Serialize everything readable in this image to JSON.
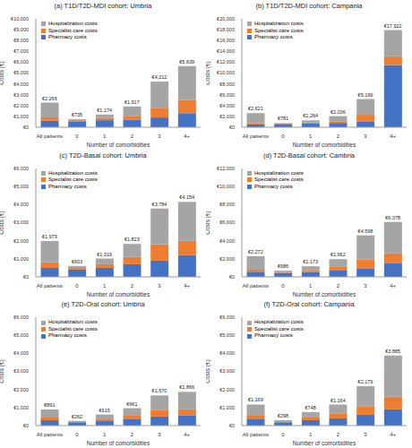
{
  "chart_data": [
    {
      "type": "bar",
      "stacked": true,
      "grid": false,
      "legend": "upper left",
      "title": "(a) T1D/T2D-MDI cohort: Umbria",
      "x_label": "Number of comorbidities",
      "y_label": "Costs (€)",
      "categories": [
        "All patients",
        "0",
        "1",
        "2",
        "3",
        "4+"
      ],
      "series": [
        {
          "name": "Pharmacy costs",
          "color": "#4472c4",
          "values": [
            600,
            550,
            650,
            700,
            900,
            1300
          ]
        },
        {
          "name": "Specialist care costs",
          "color": "#ed7d31",
          "values": [
            300,
            100,
            200,
            300,
            900,
            1200
          ]
        },
        {
          "name": "Hospitalization costs",
          "color": "#a5a5a5",
          "values": [
            1366,
            85,
            324,
            917,
            2412,
            3139
          ]
        }
      ],
      "totals": [
        2266,
        735,
        1174,
        1917,
        4212,
        5639
      ],
      "total_labels": [
        "€2,266",
        "€735",
        "€1,174",
        "€1,917",
        "€4,212",
        "€5,639"
      ],
      "ylim": [
        0,
        10000
      ],
      "yticks": [
        {
          "value": 0,
          "label": "€0"
        },
        {
          "value": 1000,
          "label": "€1,000"
        },
        {
          "value": 2000,
          "label": "€2,000"
        },
        {
          "value": 3000,
          "label": "€3,000"
        },
        {
          "value": 4000,
          "label": "€4,000"
        },
        {
          "value": 5000,
          "label": "€5,000"
        },
        {
          "value": 6000,
          "label": "€6,000"
        },
        {
          "value": 7000,
          "label": "€7,000"
        },
        {
          "value": 8000,
          "label": "€8,000"
        },
        {
          "value": 9000,
          "label": "€9,000"
        },
        {
          "value": 10000,
          "label": "€10,000"
        }
      ]
    },
    {
      "type": "bar",
      "stacked": true,
      "grid": false,
      "legend": "upper left",
      "title": "(b) T1D/T2D-MDI cohort: Campania",
      "x_label": "Number of comorbidities",
      "y_label": "Costs (€)",
      "categories": [
        "All patients",
        "0",
        "1",
        "2",
        "3",
        "4+"
      ],
      "series": [
        {
          "name": "Pharmacy costs",
          "color": "#4472c4",
          "values": [
            500,
            600,
            700,
            800,
            1100,
            11500
          ]
        },
        {
          "name": "Specialist care costs",
          "color": "#ed7d31",
          "values": [
            200,
            100,
            150,
            300,
            1200,
            1600
          ]
        },
        {
          "name": "Hospitalization costs",
          "color": "#a5a5a5",
          "values": [
            1921,
            81,
            414,
            936,
            2899,
            4822
          ]
        }
      ],
      "totals": [
        2621,
        781,
        1264,
        2036,
        5199,
        17922
      ],
      "total_labels": [
        "€2,621",
        "€781",
        "€1,264",
        "€2,036",
        "€5,199",
        "€17,922"
      ],
      "ylim": [
        0,
        20000
      ],
      "yticks": [
        {
          "value": 0,
          "label": "€0"
        },
        {
          "value": 2000,
          "label": "€2,000"
        },
        {
          "value": 4000,
          "label": "€4,000"
        },
        {
          "value": 6000,
          "label": "€6,000"
        },
        {
          "value": 8000,
          "label": "€8,000"
        },
        {
          "value": 10000,
          "label": "€10,000"
        },
        {
          "value": 12000,
          "label": "€12,000"
        },
        {
          "value": 14000,
          "label": "€14,000"
        },
        {
          "value": 16000,
          "label": "€16,000"
        },
        {
          "value": 18000,
          "label": "€18,000"
        },
        {
          "value": 20000,
          "label": "€20,000"
        }
      ]
    },
    {
      "type": "bar",
      "stacked": true,
      "grid": false,
      "legend": "upper left",
      "title": "(c) T2D-Basal cohort: Umbria",
      "x_label": "Number of comorbidities",
      "y_label": "Costs (€)",
      "categories": [
        "All patients",
        "0",
        "1",
        "2",
        "3",
        "4+"
      ],
      "series": [
        {
          "name": "Pharmacy costs",
          "color": "#4472c4",
          "values": [
            500,
            400,
            500,
            700,
            900,
            1200
          ]
        },
        {
          "name": "Specialist care costs",
          "color": "#ed7d31",
          "values": [
            300,
            100,
            200,
            400,
            900,
            800
          ]
        },
        {
          "name": "Hospitalization costs",
          "color": "#a5a5a5",
          "values": [
            1179,
            103,
            316,
            723,
            1984,
            2154
          ]
        }
      ],
      "totals": [
        1979,
        603,
        1016,
        1823,
        3784,
        4154
      ],
      "total_labels": [
        "€1,979",
        "€603",
        "€1,016",
        "€1,823",
        "€3,784",
        "€4,154"
      ],
      "ylim": [
        0,
        6000
      ],
      "yticks": [
        {
          "value": 0,
          "label": "€0"
        },
        {
          "value": 1000,
          "label": "€1,000"
        },
        {
          "value": 2000,
          "label": "€2,000"
        },
        {
          "value": 3000,
          "label": "€3,000"
        },
        {
          "value": 4000,
          "label": "€4,000"
        },
        {
          "value": 5000,
          "label": "€5,000"
        },
        {
          "value": 6000,
          "label": "€6,000"
        }
      ]
    },
    {
      "type": "bar",
      "stacked": true,
      "grid": false,
      "legend": "upper left",
      "title": "(d) T2D-Basal cohort: Cambria",
      "x_label": "Number of comorbidities",
      "y_label": "Costs (€)",
      "categories": [
        "All patients",
        "0",
        "1",
        "2",
        "3",
        "4+"
      ],
      "series": [
        {
          "name": "Pharmacy costs",
          "color": "#4472c4",
          "values": [
            500,
            450,
            550,
            700,
            900,
            1500
          ]
        },
        {
          "name": "Specialist care costs",
          "color": "#ed7d31",
          "values": [
            300,
            100,
            200,
            400,
            1000,
            1100
          ]
        },
        {
          "name": "Hospitalization costs",
          "color": "#a5a5a5",
          "values": [
            1472,
            136,
            423,
            862,
            2698,
            3478
          ]
        }
      ],
      "totals": [
        2272,
        686,
        1173,
        1962,
        4598,
        6078
      ],
      "total_labels": [
        "€2,272",
        "€686",
        "€1,173",
        "€1,962",
        "€4,598",
        "€6,078"
      ],
      "ylim": [
        0,
        12000
      ],
      "yticks": [
        {
          "value": 0,
          "label": "€0"
        },
        {
          "value": 2000,
          "label": "€2,000"
        },
        {
          "value": 4000,
          "label": "€4,000"
        },
        {
          "value": 6000,
          "label": "€6,000"
        },
        {
          "value": 8000,
          "label": "€8,000"
        },
        {
          "value": 10000,
          "label": "€10,000"
        },
        {
          "value": 12000,
          "label": "€12,000"
        }
      ]
    },
    {
      "type": "bar",
      "stacked": true,
      "grid": false,
      "legend": "upper left",
      "title": "(e) T2D-Oral cohort: Umbria",
      "x_label": "Number of comorbidities",
      "y_label": "Costs (€)",
      "categories": [
        "All patients",
        "0",
        "1",
        "2",
        "3",
        "4+"
      ],
      "series": [
        {
          "name": "Pharmacy costs",
          "color": "#4472c4",
          "values": [
            300,
            150,
            250,
            350,
            500,
            550
          ]
        },
        {
          "name": "Specialist care costs",
          "color": "#ed7d31",
          "values": [
            150,
            50,
            100,
            200,
            350,
            350
          ]
        },
        {
          "name": "Hospitalization costs",
          "color": "#a5a5a5",
          "values": [
            441,
            62,
            265,
            411,
            820,
            966
          ]
        }
      ],
      "totals": [
        891,
        262,
        615,
        961,
        1670,
        1866
      ],
      "total_labels": [
        "€891",
        "€262",
        "€615",
        "€961",
        "€1,670",
        "€1,866"
      ],
      "ylim": [
        0,
        6000
      ],
      "yticks": [
        {
          "value": 0,
          "label": "€0"
        },
        {
          "value": 1000,
          "label": "€1,000"
        },
        {
          "value": 2000,
          "label": "€2,000"
        },
        {
          "value": 3000,
          "label": "€3,000"
        },
        {
          "value": 4000,
          "label": "€4,000"
        },
        {
          "value": 5000,
          "label": "€5,000"
        },
        {
          "value": 6000,
          "label": "€6,000"
        }
      ]
    },
    {
      "type": "bar",
      "stacked": true,
      "grid": false,
      "legend": "upper left",
      "title": "(f) T2D-Oral cohort: Campania",
      "x_label": "Number of comorbidities",
      "y_label": "Costs (€)",
      "categories": [
        "All patients",
        "0",
        "1",
        "2",
        "3",
        "4+"
      ],
      "series": [
        {
          "name": "Pharmacy costs",
          "color": "#4472c4",
          "values": [
            350,
            150,
            300,
            400,
            600,
            900
          ]
        },
        {
          "name": "Specialist care costs",
          "color": "#ed7d31",
          "values": [
            200,
            50,
            150,
            250,
            450,
            700
          ]
        },
        {
          "name": "Hospitalization costs",
          "color": "#a5a5a5",
          "values": [
            619,
            98,
            298,
            514,
            1129,
            2285
          ]
        }
      ],
      "totals": [
        1169,
        298,
        748,
        1164,
        2179,
        3885
      ],
      "total_labels": [
        "€1,169",
        "€298",
        "€748",
        "€1,164",
        "€2,179",
        "€3,885"
      ],
      "ylim": [
        0,
        6000
      ],
      "yticks": [
        {
          "value": 0,
          "label": "€0"
        },
        {
          "value": 1000,
          "label": "€1,000"
        },
        {
          "value": 2000,
          "label": "€2,000"
        },
        {
          "value": 3000,
          "label": "€3,000"
        },
        {
          "value": 4000,
          "label": "€4,000"
        },
        {
          "value": 5000,
          "label": "€5,000"
        },
        {
          "value": 6000,
          "label": "€6,000"
        }
      ]
    }
  ]
}
